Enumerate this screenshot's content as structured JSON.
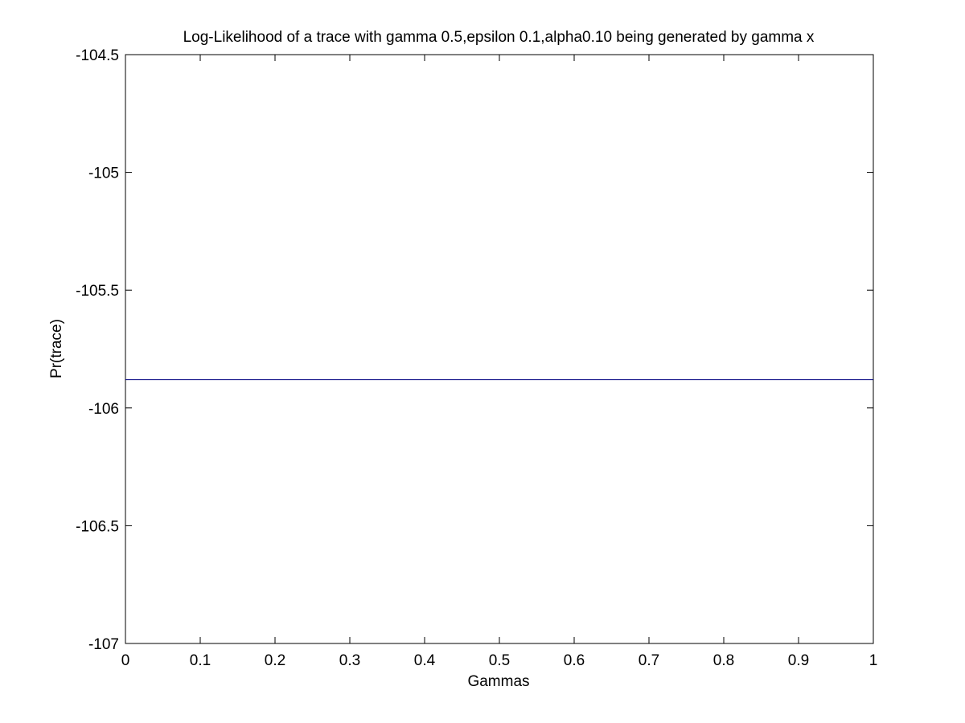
{
  "chart_data": {
    "type": "line",
    "title": "Log-Likelihood of a trace with gamma 0.5,epsilon 0.1,alpha0.10 being generated by gamma x",
    "xlabel": "Gammas",
    "ylabel": "Pr(trace)",
    "xlim": [
      0,
      1
    ],
    "ylim": [
      -107,
      -104.5
    ],
    "x_ticks": [
      0,
      0.1,
      0.2,
      0.3,
      0.4,
      0.5,
      0.6,
      0.7,
      0.8,
      0.9,
      1
    ],
    "x_tick_labels": [
      "0",
      "0.1",
      "0.2",
      "0.3",
      "0.4",
      "0.5",
      "0.6",
      "0.7",
      "0.8",
      "0.9",
      "1"
    ],
    "y_ticks": [
      -107,
      -106.5,
      -106,
      -105.5,
      -105,
      -104.5
    ],
    "y_tick_labels": [
      "-107",
      "-106.5",
      "-106",
      "-105.5",
      "-105",
      "-104.5"
    ],
    "grid": false,
    "legend": "none",
    "series": [
      {
        "color": "#000080",
        "x": [
          0,
          0.1,
          0.2,
          0.3,
          0.4,
          0.5,
          0.6,
          0.7,
          0.8,
          0.9,
          1
        ],
        "y": [
          -105.88,
          -105.88,
          -105.88,
          -105.88,
          -105.88,
          -105.88,
          -105.88,
          -105.88,
          -105.88,
          -105.88,
          -105.88
        ]
      }
    ]
  }
}
